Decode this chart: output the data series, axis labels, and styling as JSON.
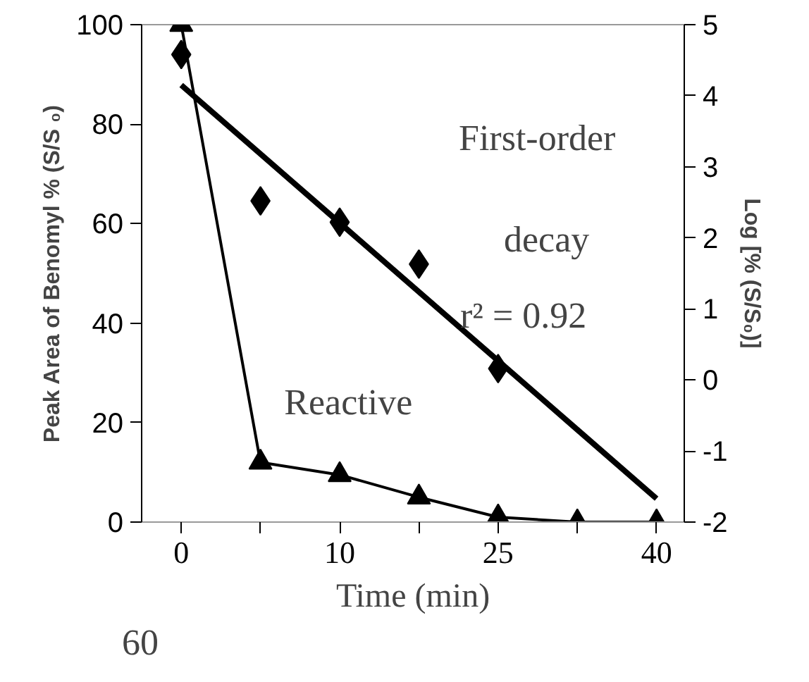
{
  "chart_data": {
    "type": "line",
    "xlabel": "Time (min)",
    "ylabel": "Peak Area of Benomyl % (S/S ₀)",
    "y2label": "Log [% (S/S₀)]",
    "categories": [
      "0",
      null,
      "10",
      null,
      "25",
      null,
      "40"
    ],
    "ylim": [
      0,
      100
    ],
    "yticks": [
      0,
      20,
      40,
      60,
      80,
      100
    ],
    "y2lim": [
      -2,
      5
    ],
    "y2ticks": [
      -2,
      -1,
      0,
      1,
      2,
      3,
      4,
      5
    ],
    "series": [
      {
        "name": "Reactive",
        "type": "line",
        "marker": "triangle",
        "color": "#000000",
        "values": [
          100,
          12,
          9.5,
          5,
          1,
          0,
          0
        ]
      },
      {
        "type": "scatter",
        "marker": "diamond",
        "axis": "y2",
        "color": "#000000",
        "values": [
          4.58,
          2.52,
          2.22,
          1.63,
          0.16,
          null,
          null
        ]
      },
      {
        "marker": "none",
        "axis": "y2",
        "color": "#000000",
        "values": [
          4.15,
          3.18,
          2.21,
          1.24,
          0.27,
          -0.7,
          -1.67
        ]
      }
    ],
    "annotations": [
      "First-order decay",
      "r² = 0.92",
      "60"
    ],
    "grid": false,
    "legend": false
  }
}
